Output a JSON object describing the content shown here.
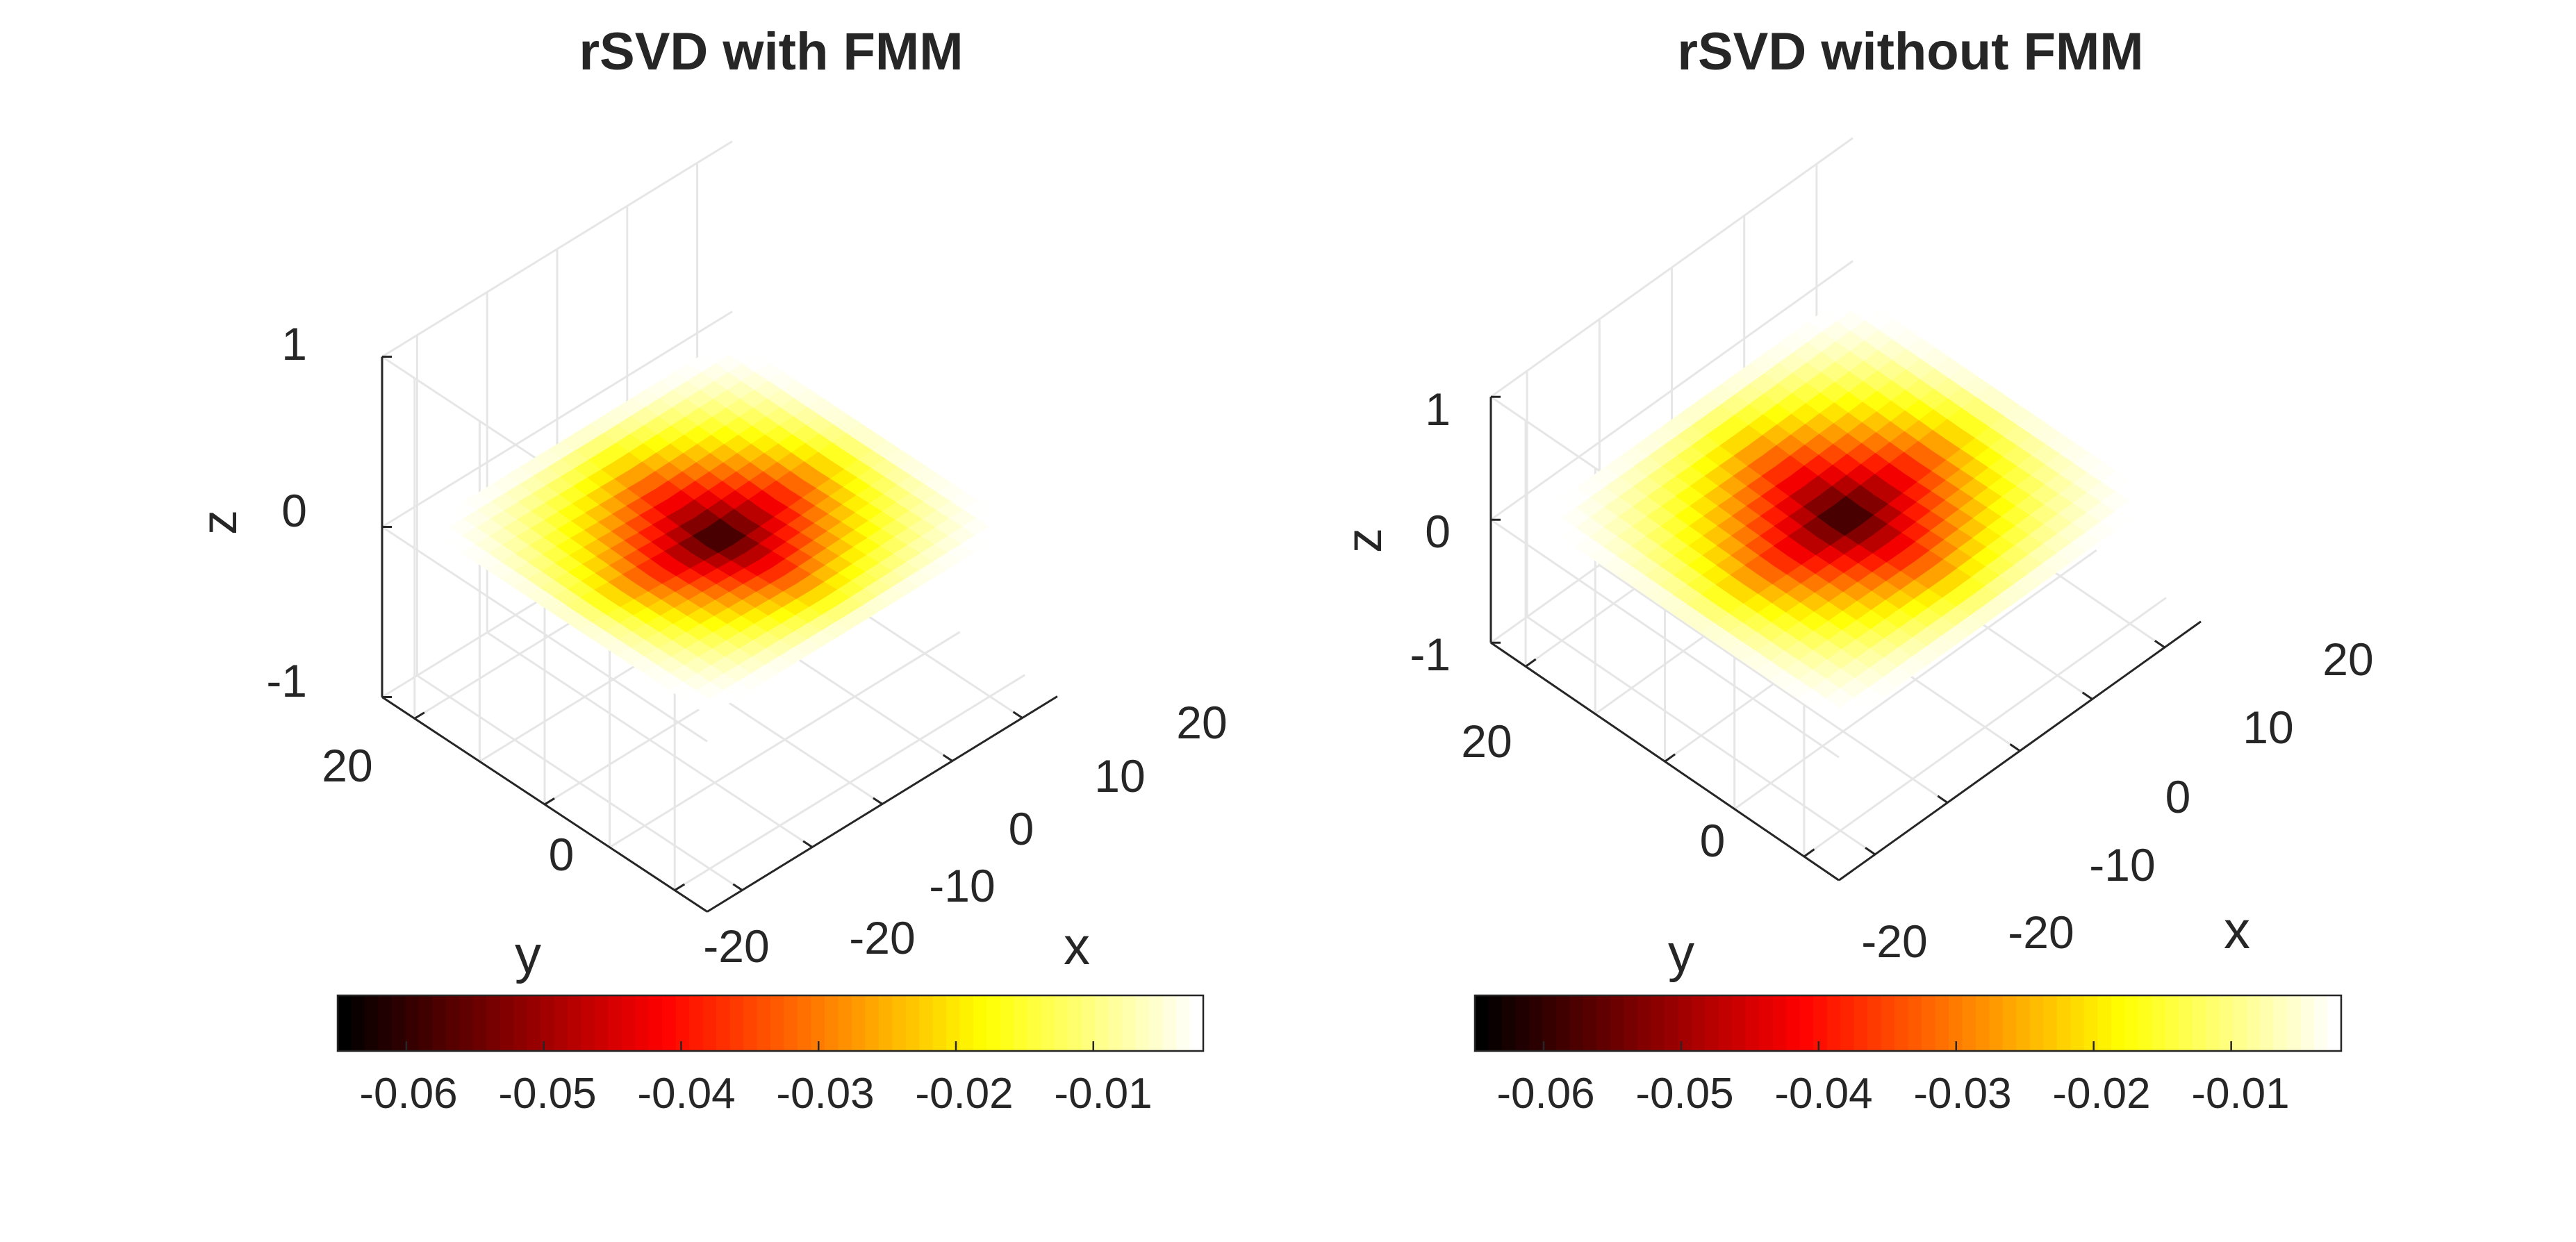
{
  "figure": {
    "colormap": "hot",
    "background": "#ffffff",
    "grid": true,
    "view": "3-D surface, azimuth -45, elevation ~60"
  },
  "chart_data": [
    {
      "type": "surface",
      "title": "rSVD with FMM",
      "xlabel": "x",
      "ylabel": "y",
      "zlabel": "z",
      "xlim": [
        -25,
        25
      ],
      "ylim": [
        -25,
        25
      ],
      "zlim": [
        -1,
        1
      ],
      "x_ticks": [
        "-20",
        "-10",
        "0",
        "10",
        "20"
      ],
      "y_ticks": [
        "20",
        "0",
        "-20"
      ],
      "z_ticks": [
        "1",
        "0",
        "-1"
      ],
      "grid_points": 23,
      "grid_range": [
        -22,
        22
      ],
      "surface_formula": "z = c * (1 - |x|/22) * (1 - |y|/22)",
      "value_range": [
        -0.065,
        -0.001
      ],
      "colorbar": {
        "orientation": "horizontal",
        "location": "below",
        "ticks": [
          "-0.06",
          "-0.05",
          "-0.04",
          "-0.03",
          "-0.02",
          "-0.01"
        ],
        "tick_values": [
          -0.06,
          -0.05,
          -0.04,
          -0.03,
          -0.02,
          -0.01
        ],
        "range": [
          -0.065,
          -0.002
        ]
      }
    },
    {
      "type": "surface",
      "title": "rSVD without FMM",
      "xlabel": "x",
      "ylabel": "y",
      "zlabel": "z",
      "xlim": [
        -25,
        25
      ],
      "ylim": [
        -25,
        25
      ],
      "zlim": [
        -1,
        1
      ],
      "x_ticks": [
        "-20",
        "-10",
        "0",
        "10",
        "20"
      ],
      "y_ticks": [
        "20",
        "0",
        "-20"
      ],
      "z_ticks": [
        "1",
        "0",
        "-1"
      ],
      "grid_points": 23,
      "grid_range": [
        -22,
        22
      ],
      "surface_formula": "z = c * (1 - |x|/22) * (1 - |y|/22)",
      "value_range": [
        -0.065,
        -0.001
      ],
      "colorbar": {
        "orientation": "horizontal",
        "location": "below",
        "ticks": [
          "-0.06",
          "-0.05",
          "-0.04",
          "-0.03",
          "-0.02",
          "-0.01"
        ],
        "tick_values": [
          -0.06,
          -0.05,
          -0.04,
          -0.03,
          -0.02,
          -0.01
        ],
        "range": [
          -0.065,
          -0.002
        ]
      }
    }
  ]
}
